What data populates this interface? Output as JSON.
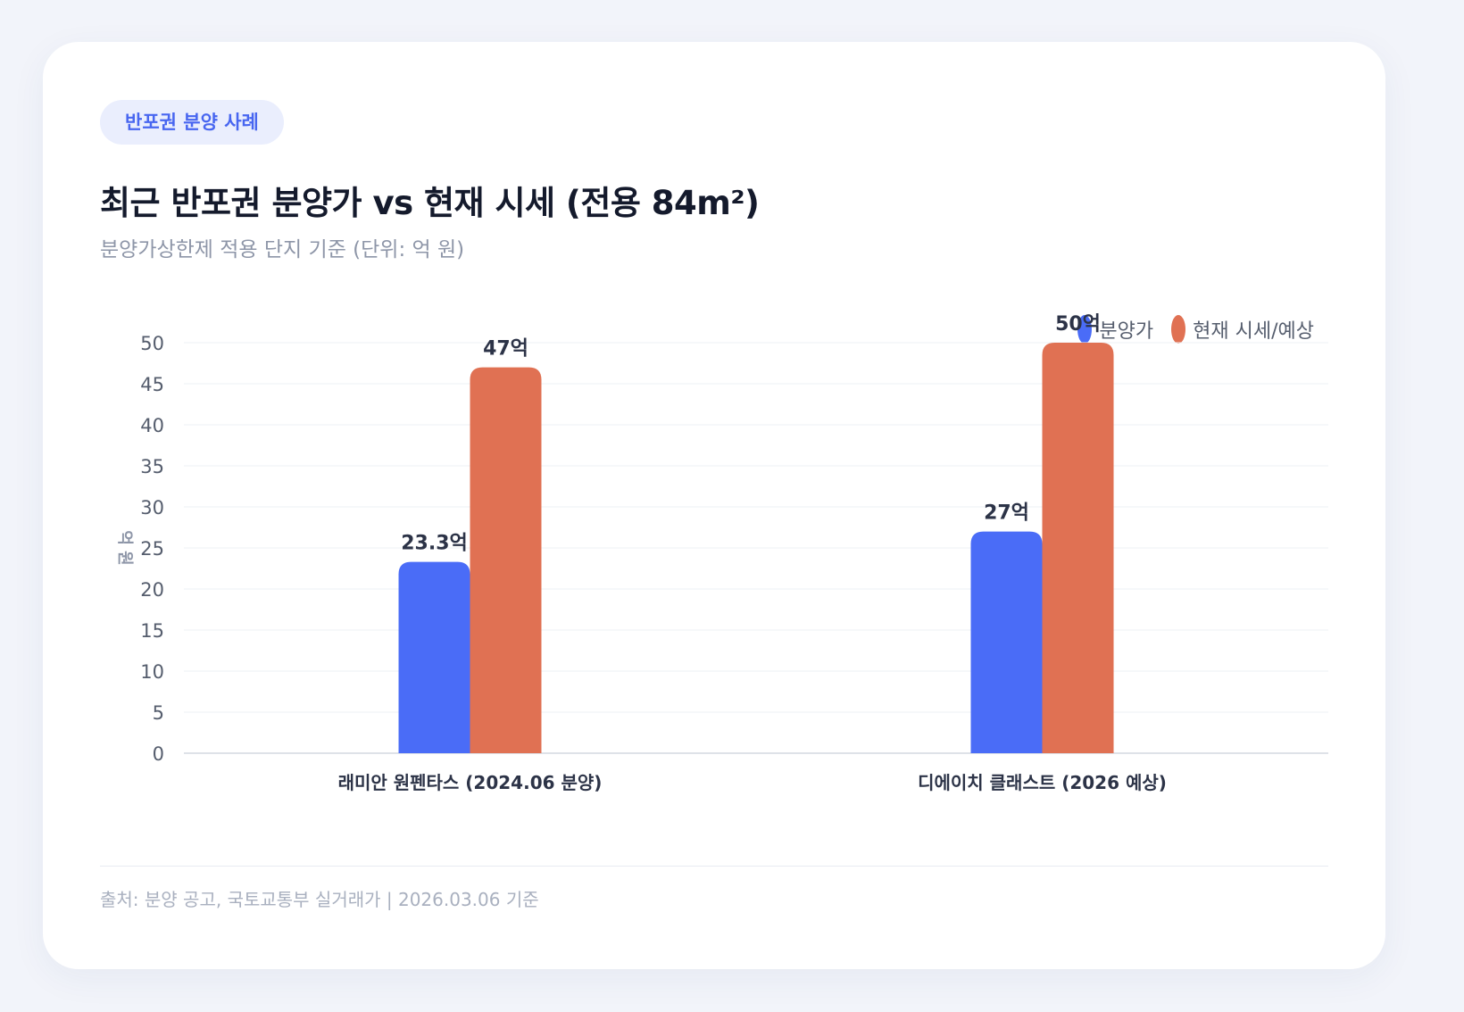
{
  "badge": "반포권 분양 사례",
  "title": "최근 반포권 분양가 vs 현재 시세 (전용 84m²)",
  "subtitle": "분양가상한제 적용 단지 기준 (단위: 억 원)",
  "footer": "출처: 분양 공고, 국토교통부 실거래가 | 2026.03.06 기준",
  "colors": {
    "series1": "#4a6cf7",
    "series2": "#e07153"
  },
  "chart_data": {
    "type": "bar",
    "categories": [
      "래미안 원펜타스 (2024.06 분양)",
      "디에이치 클래스트 (2026 예상)"
    ],
    "series": [
      {
        "name": "분양가",
        "values": [
          23.3,
          27
        ],
        "labels": [
          "23.3억",
          "27억"
        ]
      },
      {
        "name": "현재 시세/예상",
        "values": [
          47,
          50
        ],
        "labels": [
          "47억",
          "50억"
        ]
      }
    ],
    "ylabel": "억 원",
    "ylim": [
      0,
      50
    ],
    "yticks": [
      0,
      5,
      10,
      15,
      20,
      25,
      30,
      35,
      40,
      45,
      50
    ],
    "grid": true,
    "legend": "top-right"
  }
}
